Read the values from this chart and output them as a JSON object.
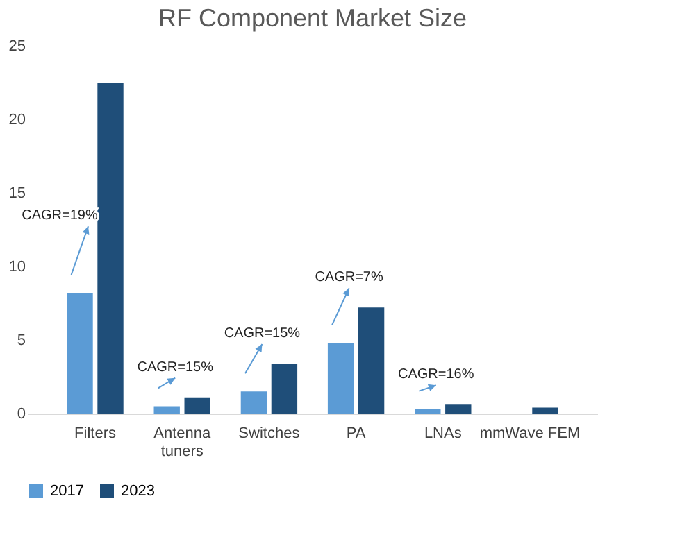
{
  "chart_data": {
    "type": "bar",
    "title": "RF Component Market Size",
    "categories": [
      "Filters",
      "Antenna tuners",
      "Switches",
      "PA",
      "LNAs",
      "mmWave FEM"
    ],
    "series": [
      {
        "name": "2017",
        "color": "#5b9bd5",
        "values": [
          8.2,
          0.5,
          1.5,
          4.8,
          0.3,
          null
        ]
      },
      {
        "name": "2023",
        "color": "#1f4e79",
        "values": [
          22.5,
          1.1,
          3.4,
          7.2,
          0.6,
          0.4
        ]
      }
    ],
    "ylim": [
      0,
      25
    ],
    "yticks": [
      0,
      5,
      10,
      15,
      20,
      25
    ],
    "grid": false,
    "legend": "bottom",
    "annotations": [
      "CAGR=19%",
      "CAGR=15%",
      "CAGR=15%",
      "CAGR=7%",
      "CAGR=16%"
    ]
  }
}
